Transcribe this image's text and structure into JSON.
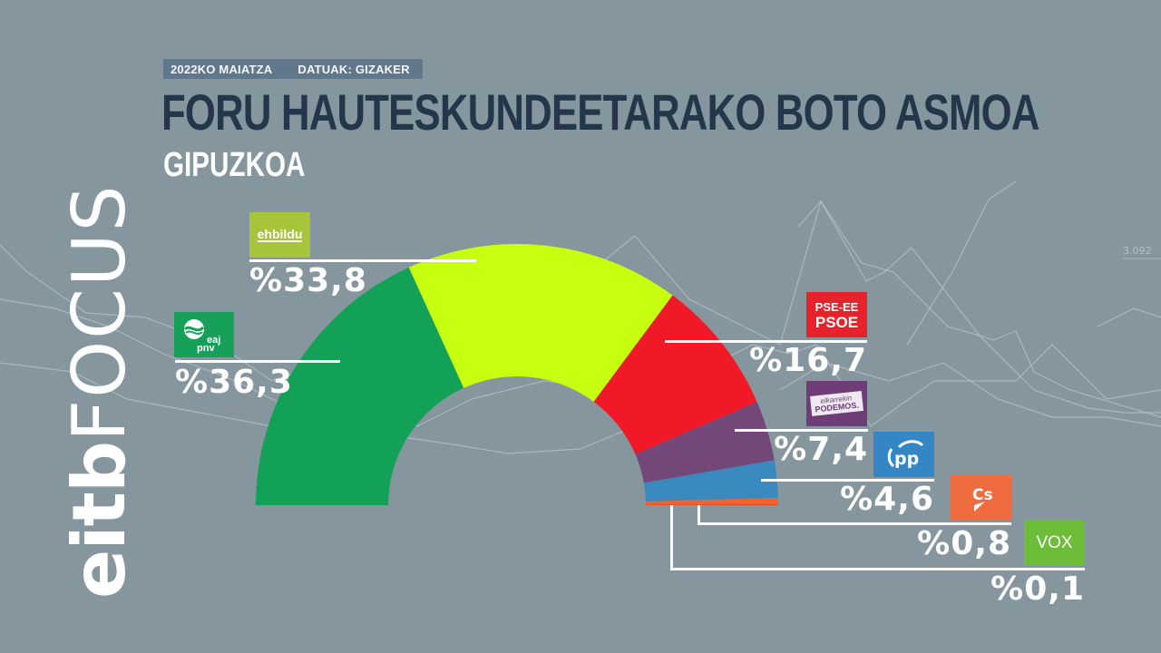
{
  "header": {
    "date_label": "2022KO MAIATZA",
    "source_label": "DATUAK: GIZAKER",
    "title": "FORU HAUTESKUNDEETARAKO BOTO ASMOA",
    "subtitle": "GIPUZKOA"
  },
  "brand": {
    "part1": "eitb",
    "part2": "FOCUS"
  },
  "background": {
    "number_label": "3.092"
  },
  "parties": [
    {
      "id": "eaj-pnv",
      "logo_text": "eaj pnv",
      "pct_label": "%36,3",
      "color": "#13a158",
      "logo_color": "#16a05a"
    },
    {
      "id": "ehbildu",
      "logo_text": "ehbildu",
      "pct_label": "%33,8",
      "color": "#c6ff0f",
      "logo_color": "#a6c53b"
    },
    {
      "id": "pse-ee",
      "logo_text_1": "PSE-EE",
      "logo_text_2": "PSOE",
      "pct_label": "%16,7",
      "color": "#f11928",
      "logo_color": "#e8222a"
    },
    {
      "id": "podemos",
      "logo_text_1": "elkarrekin",
      "logo_text_2": "PODEMOS.",
      "pct_label": "%7,4",
      "color": "#734879",
      "logo_color": "#6e3d78"
    },
    {
      "id": "pp",
      "logo_text": "pp",
      "pct_label": "%4,6",
      "color": "#3a8ac0",
      "logo_color": "#3486c5"
    },
    {
      "id": "cs",
      "logo_text": "Cs",
      "pct_label": "%0,8",
      "color": "#f2622e",
      "logo_color": "#ef6b40"
    },
    {
      "id": "vox",
      "logo_text": "VOX",
      "pct_label": "%0,1",
      "color": "#e04418",
      "logo_color": "#6ebd3a"
    }
  ],
  "chart_data": {
    "type": "pie",
    "subtype": "half-donut",
    "title": "FORU HAUTESKUNDEETARAKO BOTO ASMOA",
    "subtitle": "GIPUZKOA",
    "annotations": [
      "2022KO MAIATZA",
      "DATUAK: GIZAKER"
    ],
    "categories": [
      "EAJ-PNV",
      "EH Bildu",
      "PSE-EE (PSOE)",
      "Elkarrekin Podemos",
      "PP",
      "Cs",
      "Vox"
    ],
    "values": [
      36.3,
      33.8,
      16.7,
      7.4,
      4.6,
      0.8,
      0.1
    ],
    "unit": "%",
    "colors": [
      "#13a158",
      "#c6ff0f",
      "#f11928",
      "#734879",
      "#3a8ac0",
      "#f2622e",
      "#e04418"
    ]
  }
}
